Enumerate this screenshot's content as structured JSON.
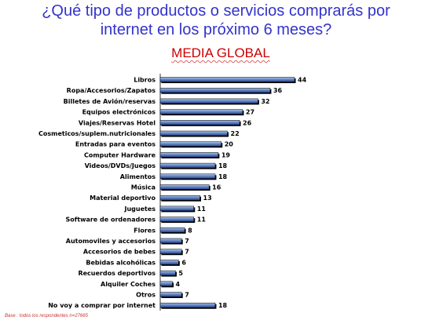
{
  "header": {
    "title_line1": "¿Qué tipo de productos o servicios comprarás por",
    "title_line2": "internet en los próximo 6 meses?",
    "subtitle": "MEDIA GLOBAL"
  },
  "footnote": "Base : todos los respondentes n=27665",
  "colors": {
    "title": "#3333cc",
    "subtitle": "#cc0000",
    "bar_light": "#a8c4ec",
    "bar_dark": "#1e3f8c",
    "bar_shadow": "#000000"
  },
  "chart_data": {
    "type": "bar",
    "orientation": "horizontal",
    "title": "MEDIA GLOBAL",
    "categories": [
      "Libros",
      "Ropa/Accesorios/Zapatos",
      "Billetes de Avión/reservas",
      "Equipos electrónicos",
      "Viajes/Reservas Hotel",
      "Cosmeticos/suplem.nutricionales",
      "Entradas para eventos",
      "Computer Hardware",
      "Videos/DVDs/Juegos",
      "Alimentos",
      "Música",
      "Material deportivo",
      "Juguetes",
      "Software de ordenadores",
      "Flores",
      "Automoviles y accesorios",
      "Accesorios de bebes",
      "Bebidas alcohólicas",
      "Recuerdos deportivos",
      "Alquiler Coches",
      "Otros",
      "No voy a comprar por internet"
    ],
    "values": [
      44,
      36,
      32,
      27,
      26,
      22,
      20,
      19,
      18,
      18,
      16,
      13,
      11,
      11,
      8,
      7,
      7,
      6,
      5,
      4,
      7,
      18
    ],
    "xlim": [
      0,
      50
    ],
    "grid": false,
    "legend": "none"
  }
}
